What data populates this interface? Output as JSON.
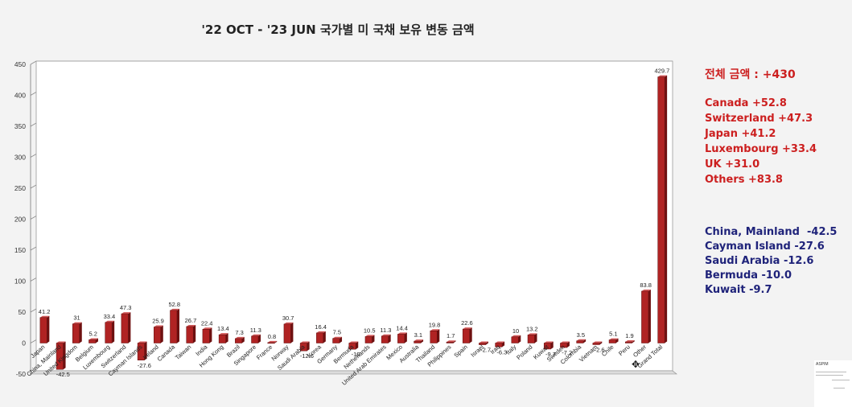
{
  "title": "'22 OCT - '23 JUN 국가별 미 국채 보유 변동 금액",
  "annotations": {
    "total": "전체 금액 : +430",
    "gainers": [
      "Canada +52.8",
      "Switzerland +47.3",
      "Japan +41.2",
      "Luxembourg +33.4",
      "UK +31.0",
      "Others +83.8"
    ],
    "losers": [
      "China, Mainland  -42.5",
      "Cayman Island -27.6",
      "Saudi Arabia -12.6",
      "Bermuda -10.0",
      "Kuwait -9.7"
    ]
  },
  "watermark": {
    "label": "ASPIM"
  },
  "colors": {
    "bar": "#b02323",
    "positive_text": "#cc1f1f",
    "negative_text": "#1f237a"
  },
  "chart_data": {
    "type": "bar",
    "title": "'22 OCT - '23 JUN 국가별 미 국채 보유 변동 금액",
    "ylim": [
      -50,
      450
    ],
    "yticks": [
      -50,
      0,
      50,
      100,
      150,
      200,
      250,
      300,
      350,
      400,
      450
    ],
    "grid": true,
    "categories": [
      "Japan",
      "China, Mainland",
      "United Kingdom",
      "Belgium",
      "Luxembourg",
      "Switzerland",
      "Cayman Islands",
      "Ireland",
      "Canada",
      "Taiwan",
      "India",
      "Hong Kong",
      "Brazil",
      "Singapore",
      "France",
      "Norway",
      "Saudi Arabia",
      "Korea",
      "Germany",
      "Bermuda",
      "Netherlands",
      "United Arab Emirates",
      "Mexico",
      "Australia",
      "Thailand",
      "Philippines",
      "Spain",
      "Israel",
      "Iraq",
      "Italy",
      "Poland",
      "Kuwait",
      "Sweden",
      "Colombia",
      "Vietnam",
      "Chile",
      "Peru",
      "Other",
      "Grand Total"
    ],
    "values": [
      41.2,
      -42.5,
      31,
      5.2,
      33.4,
      47.3,
      -27.6,
      25.9,
      52.8,
      26.7,
      22.4,
      13.4,
      7.3,
      11.3,
      0.8,
      30.7,
      -12.6,
      16.4,
      7.5,
      -10,
      10.5,
      11.3,
      14.4,
      3.1,
      19.8,
      1.7,
      22.6,
      -2.7,
      -6.3,
      10,
      13.2,
      -9.7,
      -7.2,
      3.5,
      -2.6,
      5.1,
      1.9,
      83.8,
      429.7
    ],
    "data_labels": [
      "41.2",
      "-42.5",
      "31",
      "5.2",
      "33.4",
      "47.3",
      "-27.6",
      "25.9",
      "52.8",
      "26.7",
      "22.4",
      "13.4",
      "7.3",
      "11.3",
      "0.8",
      "30.7",
      "-12.6",
      "16.4",
      "7.5",
      "-10",
      "10.5",
      "11.3",
      "14.4",
      "3.1",
      "19.8",
      "1.7",
      "22.6",
      "-2.7",
      "-6.3",
      "10",
      "13.2",
      "-9.7",
      "-7.2",
      "3.5",
      "-2.6",
      "5.1",
      "1.9",
      "83.8",
      "429.7"
    ]
  }
}
